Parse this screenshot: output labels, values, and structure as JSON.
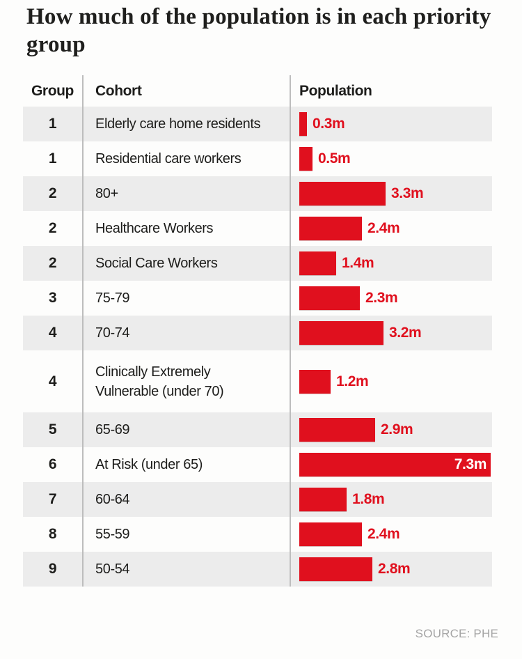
{
  "page": {
    "title": "How much of the population is in each priority group",
    "source": "SOURCE: PHE"
  },
  "table": {
    "headers": {
      "group": "Group",
      "cohort": "Cohort",
      "population": "Population"
    }
  },
  "colors": {
    "bar": "#e0101e",
    "row_alt": "#ececec",
    "divider": "#bdbdbd",
    "text": "#1d1d1b",
    "source_text": "#a5a5a5"
  },
  "chart_data": {
    "type": "bar",
    "orientation": "horizontal",
    "title": "How much of the population is in each priority group",
    "columns": [
      "Group",
      "Cohort",
      "Population"
    ],
    "xlabel": "",
    "ylabel": "Population",
    "xlim": [
      0,
      7.3
    ],
    "grid": false,
    "legend": false,
    "bar_color": "#e0101e",
    "source": "SOURCE: PHE",
    "rows": [
      {
        "group": "1",
        "cohort": "Elderly care home residents",
        "value": 0.3,
        "label": "0.3m"
      },
      {
        "group": "1",
        "cohort": "Residential care workers",
        "value": 0.5,
        "label": "0.5m"
      },
      {
        "group": "2",
        "cohort": "80+",
        "value": 3.3,
        "label": "3.3m"
      },
      {
        "group": "2",
        "cohort": "Healthcare Workers",
        "value": 2.4,
        "label": "2.4m"
      },
      {
        "group": "2",
        "cohort": "Social Care Workers",
        "value": 1.4,
        "label": "1.4m"
      },
      {
        "group": "3",
        "cohort": "75-79",
        "value": 2.3,
        "label": "2.3m"
      },
      {
        "group": "4",
        "cohort": "70-74",
        "value": 3.2,
        "label": "3.2m"
      },
      {
        "group": "4",
        "cohort": "Clinically Extremely Vulnerable (under 70)",
        "value": 1.2,
        "label": "1.2m"
      },
      {
        "group": "5",
        "cohort": "65-69",
        "value": 2.9,
        "label": "2.9m"
      },
      {
        "group": "6",
        "cohort": "At Risk (under 65)",
        "value": 7.3,
        "label": "7.3m"
      },
      {
        "group": "7",
        "cohort": "60-64",
        "value": 1.8,
        "label": "1.8m"
      },
      {
        "group": "8",
        "cohort": "55-59",
        "value": 2.4,
        "label": "2.4m"
      },
      {
        "group": "9",
        "cohort": "50-54",
        "value": 2.8,
        "label": "2.8m"
      }
    ]
  }
}
